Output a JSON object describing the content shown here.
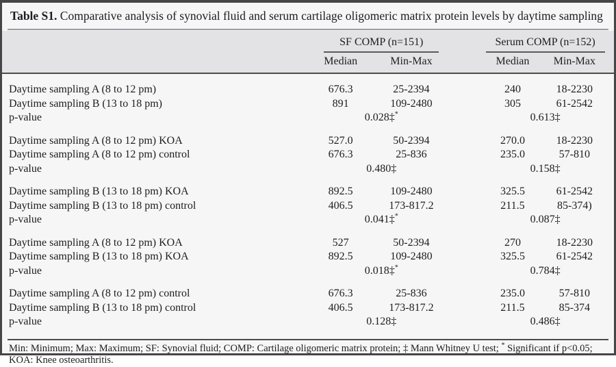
{
  "title": {
    "label": "Table S1.",
    "text": " Comparative analysis of synovial fluid and serum cartilage oligomeric matrix protein levels by daytime sampling"
  },
  "header": {
    "sf_group": "SF COMP (n=151)",
    "serum_group": "Serum COMP (n=152)",
    "median": "Median",
    "minmax": "Min-Max"
  },
  "blocks": [
    {
      "rows": [
        {
          "label": "Daytime sampling A (8 to 12 pm)",
          "sf_median": "676.3",
          "sf_minmax": "25-2394",
          "serum_median": "240",
          "serum_minmax": "18-2230"
        },
        {
          "label": "Daytime sampling B (13 to 18 pm)",
          "sf_median": "891",
          "sf_minmax": "109-2480",
          "serum_median": "305",
          "serum_minmax": "61-2542"
        }
      ],
      "p_label": "p-value",
      "sf_p": "0.028‡",
      "sf_p_sup": "*",
      "serum_p": "0.613‡",
      "serum_p_sup": ""
    },
    {
      "rows": [
        {
          "label": "Daytime sampling A (8 to 12 pm) KOA",
          "sf_median": "527.0",
          "sf_minmax": "50-2394",
          "serum_median": "270.0",
          "serum_minmax": "18-2230"
        },
        {
          "label": "Daytime sampling A (8 to 12 pm) control",
          "sf_median": "676.3",
          "sf_minmax": "25-836",
          "serum_median": "235.0",
          "serum_minmax": "57-810"
        }
      ],
      "p_label": "p-value",
      "sf_p": "0.480‡",
      "sf_p_sup": "",
      "serum_p": "0.158‡",
      "serum_p_sup": ""
    },
    {
      "rows": [
        {
          "label": "Daytime sampling B (13 to 18 pm) KOA",
          "sf_median": "892.5",
          "sf_minmax": "109-2480",
          "serum_median": "325.5",
          "serum_minmax": "61-2542"
        },
        {
          "label": "Daytime sampling B (13 to 18 pm) control",
          "sf_median": "406.5",
          "sf_minmax": "173-817.2",
          "serum_median": "211.5",
          "serum_minmax": "85-374)"
        }
      ],
      "p_label": "p-value",
      "sf_p": "0.041‡",
      "sf_p_sup": "*",
      "serum_p": "0.087‡",
      "serum_p_sup": ""
    },
    {
      "rows": [
        {
          "label": "Daytime sampling A (8 to 12 pm) KOA",
          "sf_median": "527",
          "sf_minmax": "50-2394",
          "serum_median": "270",
          "serum_minmax": "18-2230"
        },
        {
          "label": "Daytime sampling B (13 to 18 pm) KOA",
          "sf_median": "892.5",
          "sf_minmax": "109-2480",
          "serum_median": "325.5",
          "serum_minmax": "61-2542"
        }
      ],
      "p_label": "p-value",
      "sf_p": "0.018‡",
      "sf_p_sup": "*",
      "serum_p": "0.784‡",
      "serum_p_sup": ""
    },
    {
      "rows": [
        {
          "label": "Daytime sampling A (8 to 12 pm) control",
          "sf_median": "676.3",
          "sf_minmax": "25-836",
          "serum_median": "235.0",
          "serum_minmax": "57-810"
        },
        {
          "label": "Daytime sampling B (13 to 18 pm) control",
          "sf_median": "406.5",
          "sf_minmax": "173-817.2",
          "serum_median": "211.5",
          "serum_minmax": "85-374"
        }
      ],
      "p_label": "p-value",
      "sf_p": "0.128‡",
      "sf_p_sup": "",
      "serum_p": "0.486‡",
      "serum_p_sup": ""
    }
  ],
  "footnote": {
    "part1": "Min: Minimum; Max: Maximum; SF: Synovial fluid; COMP: Cartilage oligomeric matrix protein; ‡ Mann Whitney U test; ",
    "sup": "*",
    "part2": " Significant if p<0.05; KOA: Knee osteoarthritis."
  },
  "colors": {
    "frame_border": "#464646",
    "header_band": "#e3e3e5",
    "page_background": "#f6f6f7",
    "rule_dark": "#4b4b4b",
    "rule_light": "#9c9ca0",
    "text": "#1d1d1f"
  }
}
